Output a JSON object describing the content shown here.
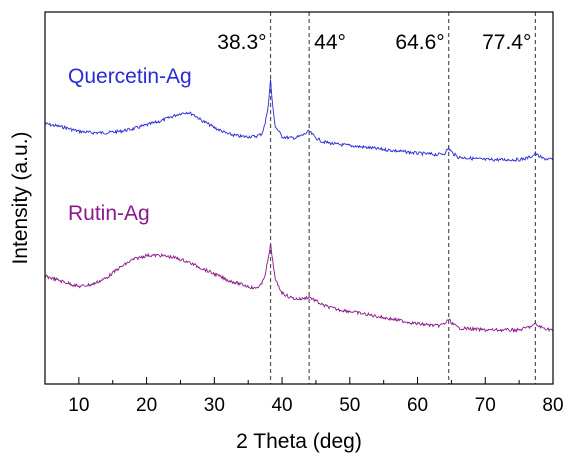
{
  "chart_data": {
    "type": "line",
    "xlabel": "2 Theta (deg)",
    "ylabel": "Intensity (a.u.)",
    "xlim": [
      5,
      80
    ],
    "xticks": [
      10,
      20,
      30,
      40,
      50,
      60,
      70,
      80
    ],
    "y_tick_labels_shown": false,
    "grid": false,
    "reference_lines": [
      {
        "x": 38.3,
        "label": "38.3°"
      },
      {
        "x": 44,
        "label": "44°"
      },
      {
        "x": 64.6,
        "label": "64.6°"
      },
      {
        "x": 77.4,
        "label": "77.4°"
      }
    ],
    "series": [
      {
        "name": "Quercetin-Ag",
        "color": "#2a2ad6",
        "x": [
          5,
          8,
          10,
          12,
          14,
          16,
          18,
          20,
          22,
          24,
          25,
          26,
          27,
          28,
          30,
          32,
          34,
          36,
          37,
          37.5,
          38,
          38.3,
          38.6,
          39,
          40,
          41,
          42,
          43,
          44,
          45,
          46,
          48,
          50,
          55,
          60,
          63,
          64,
          64.6,
          65.2,
          66,
          70,
          75,
          76,
          77,
          77.4,
          77.8,
          78.5,
          80
        ],
        "values": [
          66,
          63,
          60,
          59,
          59,
          60,
          62,
          65,
          68,
          72,
          74,
          75,
          73,
          69,
          63,
          58,
          56,
          56,
          58,
          66,
          82,
          100,
          80,
          64,
          56,
          55,
          55,
          57,
          60,
          55,
          52,
          50,
          49,
          46,
          43,
          42,
          43,
          47,
          43,
          40,
          38,
          38,
          39,
          41,
          43,
          41,
          39,
          38
        ]
      },
      {
        "name": "Rutin-Ag",
        "color": "#8a1a8a",
        "x": [
          5,
          8,
          10,
          12,
          14,
          16,
          18,
          20,
          22,
          24,
          26,
          28,
          30,
          32,
          34,
          36,
          37,
          37.5,
          38,
          38.3,
          38.6,
          39,
          40,
          41,
          42,
          43,
          44,
          45,
          46,
          48,
          50,
          55,
          60,
          63,
          64,
          64.6,
          65.2,
          66,
          70,
          75,
          76,
          77,
          77.4,
          77.8,
          78.5,
          80
        ],
        "values": [
          20,
          17,
          15,
          16,
          19,
          24,
          28,
          30,
          30,
          29,
          27,
          24,
          21,
          18,
          16,
          14,
          16,
          21,
          29,
          35,
          28,
          18,
          12,
          10,
          9,
          9,
          10,
          8,
          6,
          4,
          3,
          0,
          -3,
          -4,
          -3,
          -1,
          -3,
          -5,
          -6,
          -6,
          -5,
          -4,
          -3,
          -4,
          -5,
          -6
        ]
      }
    ]
  }
}
